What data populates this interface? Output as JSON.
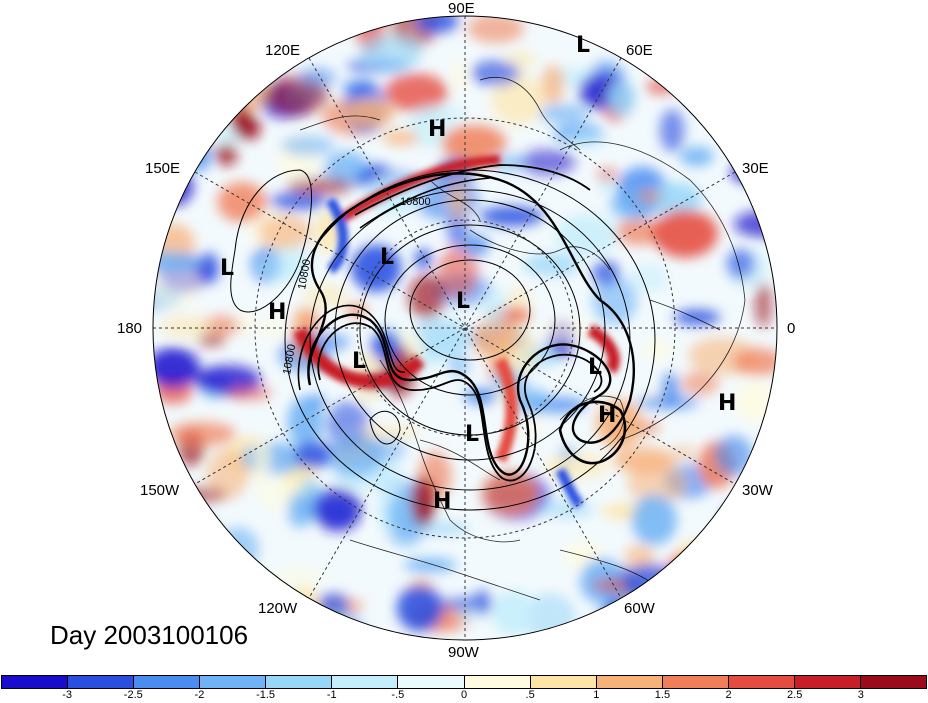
{
  "map": {
    "projection": "polar stereographic, northern hemisphere",
    "longitude_labels": {
      "lon_90e": "90E",
      "lon_60e": "60E",
      "lon_120e": "120E",
      "lon_30e": "30E",
      "lon_150e": "150E",
      "lon_180": "180",
      "lon_0": "0",
      "lon_150w": "150W",
      "lon_30w": "30W",
      "lon_120w": "120W",
      "lon_60w": "60W",
      "lon_90w": "90W"
    },
    "pressure_centers": {
      "L": "L",
      "H": "H"
    },
    "contour_labels": [
      "10800",
      "10800",
      "10800"
    ],
    "title": "Day 2003100106"
  },
  "colorbar": {
    "colors": [
      "#1a0ccc",
      "#2a4fe0",
      "#4a8cf0",
      "#6fb2f5",
      "#98d6f8",
      "#c4eefb",
      "#eafafd",
      "#fefbe0",
      "#fde5a8",
      "#f7b27a",
      "#f07e58",
      "#e54b3f",
      "#c81e28",
      "#9c0b1c"
    ],
    "tick_labels": [
      "-3",
      "-2.5",
      "-2",
      "-1.5",
      "-1",
      "-.5",
      "0",
      ".5",
      "1",
      "1.5",
      "2",
      "2.5",
      "3"
    ]
  }
}
